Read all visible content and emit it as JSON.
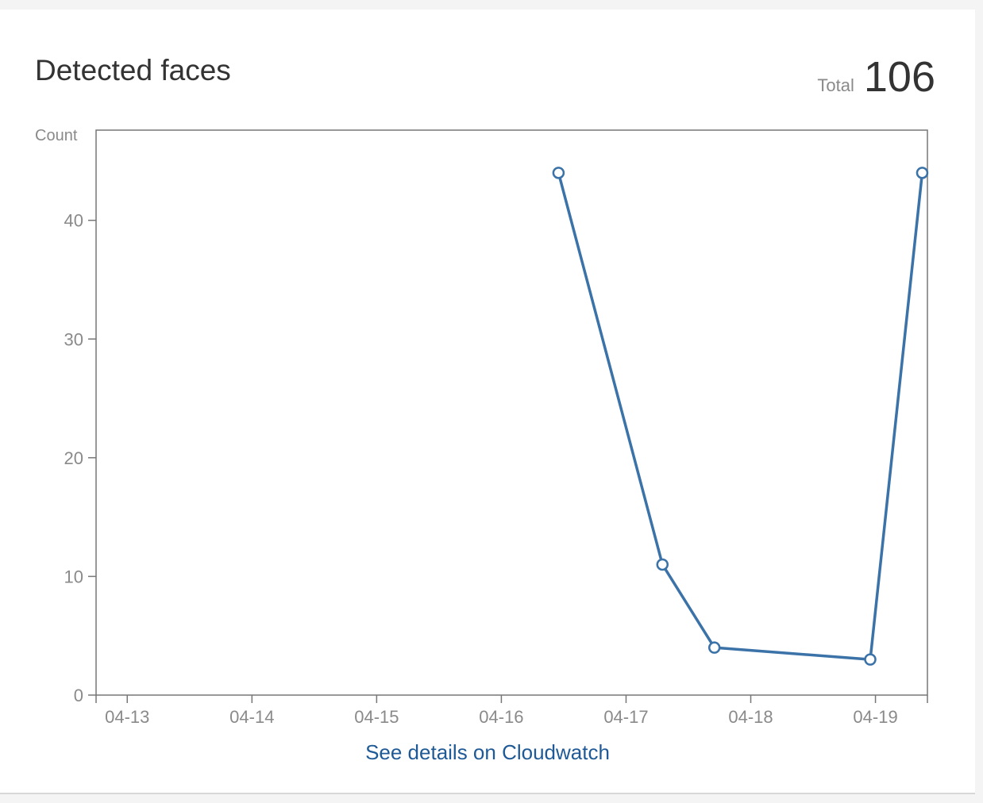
{
  "widget": {
    "title": "Detected faces",
    "total_label": "Total",
    "total_value": "106",
    "link_label": "See details on Cloudwatch"
  },
  "colors": {
    "line": "#3b72a8",
    "axis": "#777777",
    "tick_text": "#8a8a8a",
    "link": "#1f5a96"
  },
  "chart_data": {
    "type": "line",
    "ylabel": "Count",
    "xlabel": "",
    "x_ticks": [
      "04-13",
      "04-14",
      "04-15",
      "04-16",
      "04-17",
      "04-18",
      "04-19"
    ],
    "y_ticks": [
      0,
      10,
      20,
      30,
      40
    ],
    "ylim": [
      0,
      47.6
    ],
    "xlim": [
      "04-12 18:00",
      "04-19 10:00"
    ],
    "grid": false,
    "series": [
      {
        "points": [
          {
            "x": "04-16 11:00",
            "y": 44
          },
          {
            "x": "04-17 07:00",
            "y": 11
          },
          {
            "x": "04-17 17:00",
            "y": 4
          },
          {
            "x": "04-18 23:00",
            "y": 3
          },
          {
            "x": "04-19 09:00",
            "y": 44
          }
        ]
      }
    ]
  }
}
